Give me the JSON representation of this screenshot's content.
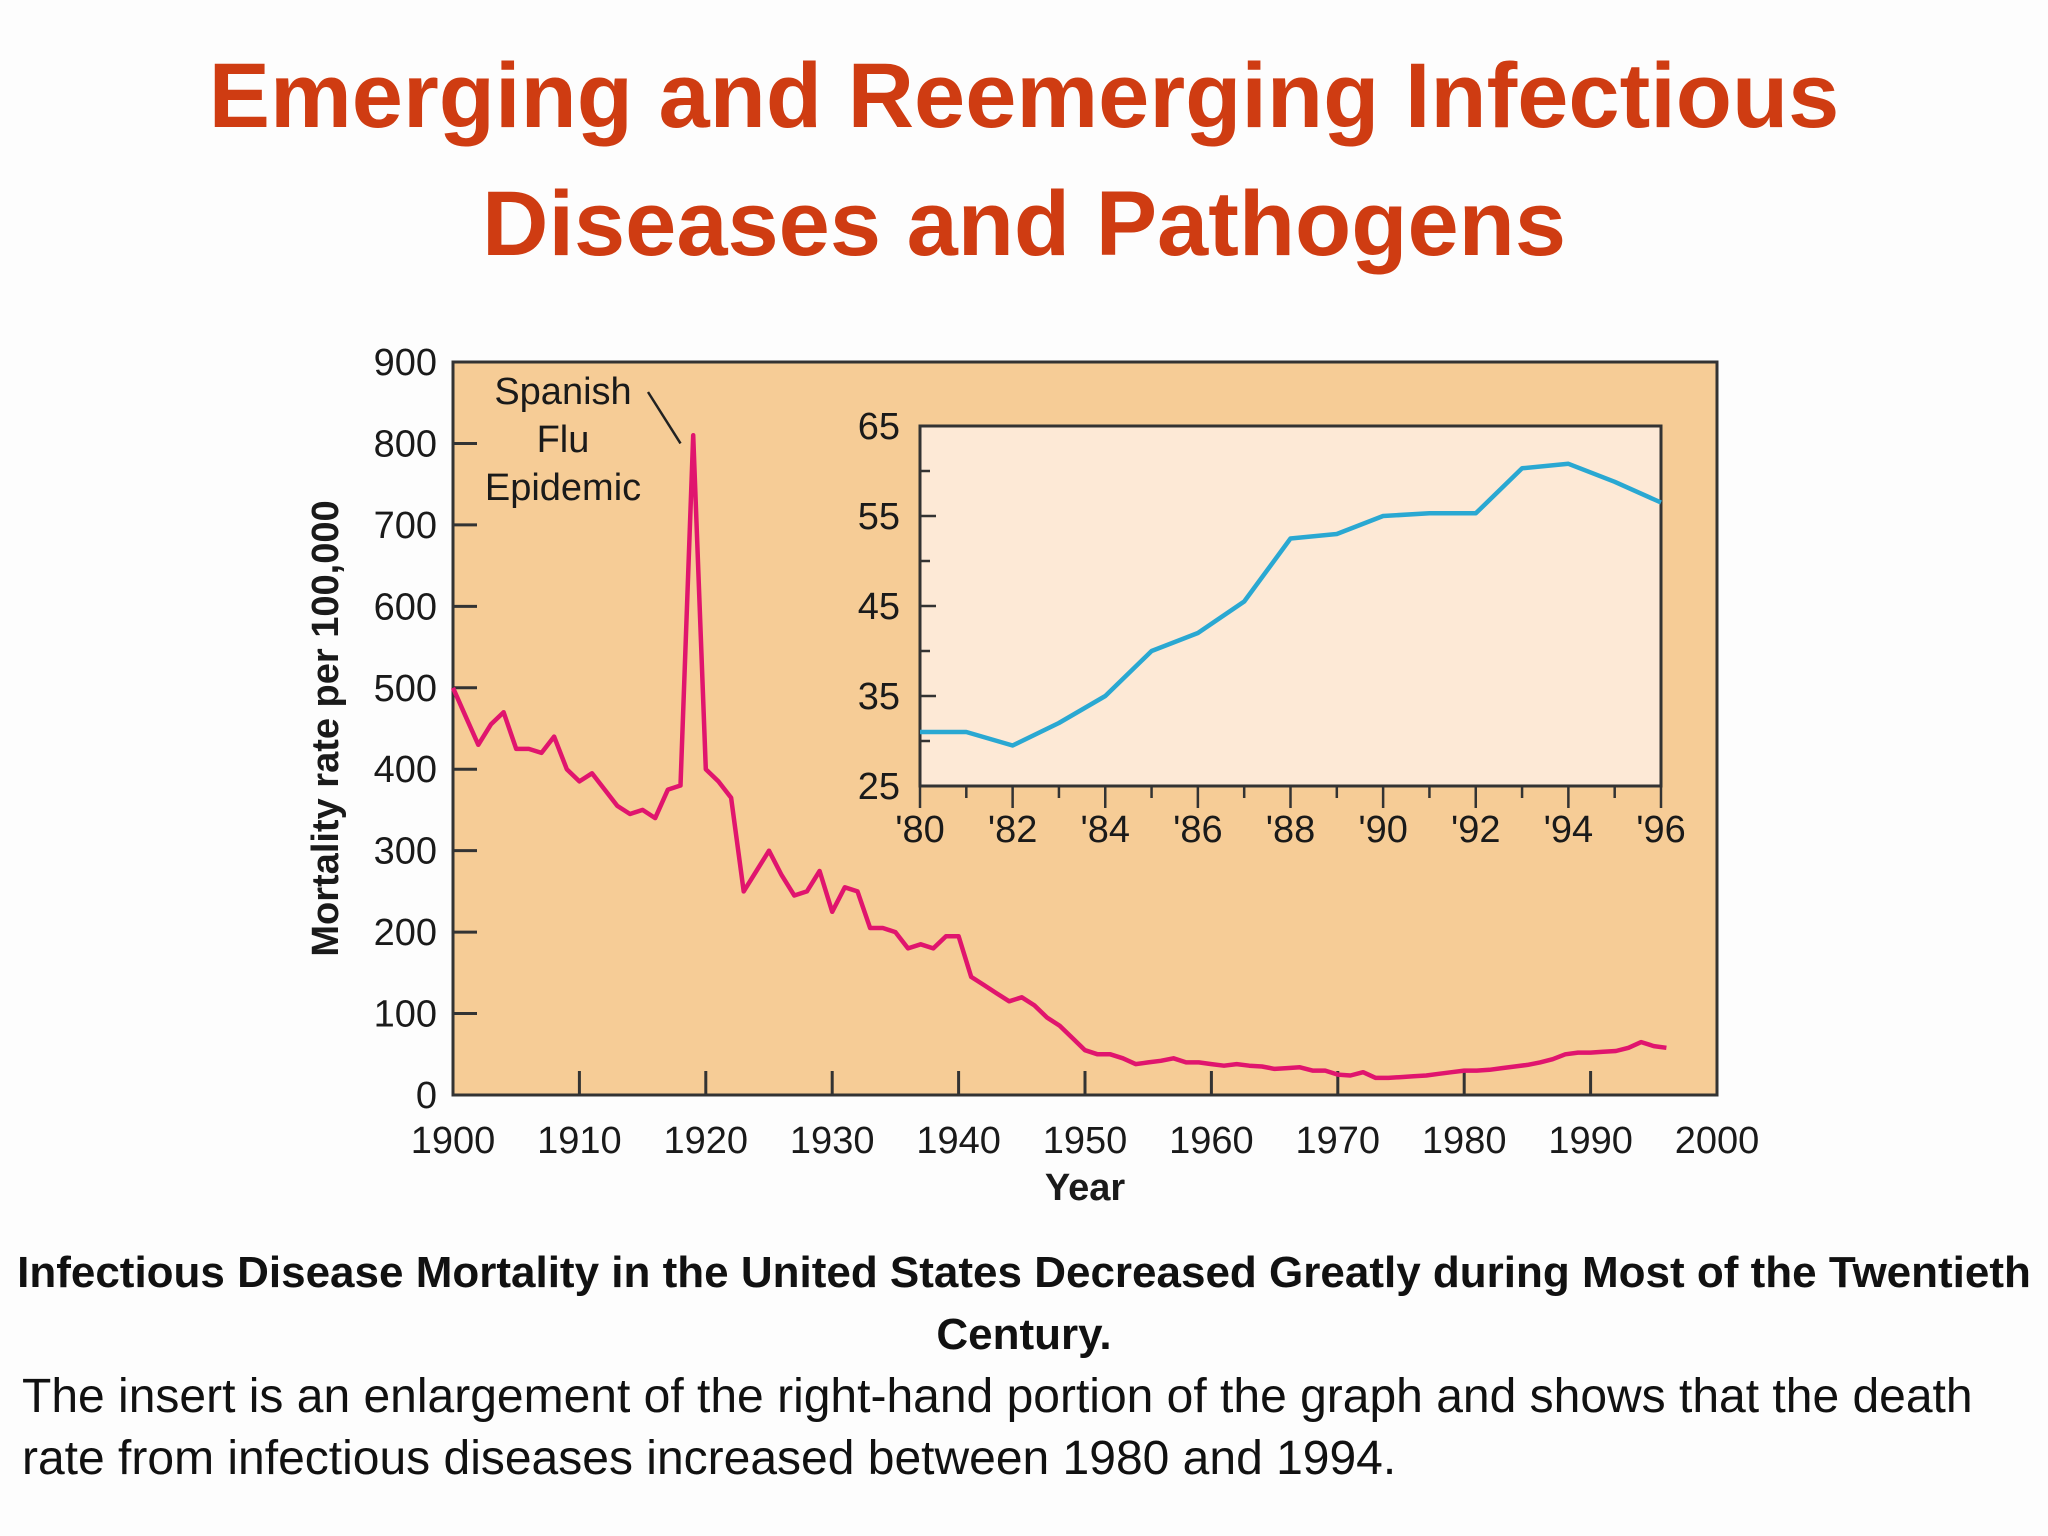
{
  "slide": {
    "title_line1": "Emerging and Reemerging Infectious",
    "title_line2": "Diseases and Pathogens"
  },
  "caption": {
    "bold": "Infectious Disease Mortality in the United States Decreased Greatly during Most of the Twentieth Century.",
    "body": "The insert is an enlargement of the right-hand portion of the graph and shows that the death rate from infectious diseases increased between 1980 and 1994."
  },
  "colors": {
    "title": "#cf3c12",
    "main_plot_bg": "#f6cc96",
    "inset_plot_bg": "#fde9d6",
    "main_line": "#e0156e",
    "inset_line": "#2aa8d2"
  },
  "chart_data": [
    {
      "type": "line",
      "title": "",
      "xlabel": "Year",
      "ylabel": "Mortality rate per 100,000",
      "xlim": [
        1900,
        2000
      ],
      "ylim": [
        0,
        900
      ],
      "x_ticks": [
        1900,
        1910,
        1920,
        1930,
        1940,
        1950,
        1960,
        1970,
        1980,
        1990,
        2000
      ],
      "y_ticks": [
        0,
        100,
        200,
        300,
        400,
        500,
        600,
        700,
        800,
        900
      ],
      "grid": false,
      "annotations": [
        {
          "text_lines": [
            "Spanish",
            "Flu",
            "Epidemic"
          ],
          "x": 1918,
          "y": 800
        }
      ],
      "series": [
        {
          "x": [
            1900,
            1901,
            1902,
            1903,
            1904,
            1905,
            1906,
            1907,
            1908,
            1909,
            1910,
            1911,
            1912,
            1913,
            1914,
            1915,
            1916,
            1917,
            1918,
            1919,
            1920,
            1921,
            1922,
            1923,
            1924,
            1925,
            1926,
            1927,
            1928,
            1929,
            1930,
            1931,
            1932,
            1933,
            1934,
            1935,
            1936,
            1937,
            1938,
            1939,
            1940,
            1941,
            1942,
            1943,
            1944,
            1945,
            1946,
            1947,
            1948,
            1949,
            1950,
            1951,
            1952,
            1953,
            1954,
            1955,
            1956,
            1957,
            1958,
            1959,
            1960,
            1961,
            1962,
            1963,
            1964,
            1965,
            1966,
            1967,
            1968,
            1969,
            1970,
            1971,
            1972,
            1973,
            1974,
            1975,
            1976,
            1977,
            1978,
            1979,
            1980,
            1981,
            1982,
            1983,
            1984,
            1985,
            1986,
            1987,
            1988,
            1989,
            1990,
            1991,
            1992,
            1993,
            1994,
            1995,
            1996
          ],
          "y": [
            500,
            465,
            430,
            455,
            470,
            425,
            425,
            420,
            440,
            400,
            385,
            395,
            375,
            355,
            345,
            350,
            340,
            375,
            380,
            810,
            400,
            385,
            365,
            250,
            275,
            300,
            270,
            245,
            250,
            275,
            225,
            255,
            250,
            205,
            205,
            200,
            180,
            185,
            180,
            195,
            195,
            145,
            135,
            125,
            115,
            120,
            110,
            95,
            85,
            70,
            55,
            50,
            50,
            45,
            38,
            40,
            42,
            45,
            40,
            40,
            38,
            36,
            38,
            36,
            35,
            32,
            33,
            34,
            30,
            30,
            25,
            24,
            28,
            21,
            21,
            22,
            23,
            24,
            26,
            28,
            30,
            30,
            31,
            33,
            35,
            37,
            40,
            44,
            50,
            52,
            52,
            53,
            54,
            58,
            65,
            60,
            58
          ]
        }
      ]
    },
    {
      "type": "line",
      "title": "",
      "xlabel": "",
      "ylabel": "",
      "xlim": [
        1980,
        1996
      ],
      "ylim": [
        25,
        65
      ],
      "x_ticks": [
        "'80",
        "'82",
        "'84",
        "'86",
        "'88",
        "'90",
        "'92",
        "'94",
        "'96"
      ],
      "y_ticks": [
        25,
        35,
        45,
        55,
        65
      ],
      "grid": false,
      "series": [
        {
          "x": [
            1980,
            1981,
            1982,
            1983,
            1984,
            1985,
            1986,
            1987,
            1988,
            1989,
            1990,
            1991,
            1992,
            1993,
            1994,
            1995,
            1996
          ],
          "y": [
            31,
            31,
            29.5,
            32,
            35,
            40,
            42,
            45.5,
            52.5,
            53,
            55,
            55.3,
            55.3,
            60.3,
            60.8,
            58.8,
            56.5
          ]
        }
      ]
    }
  ]
}
